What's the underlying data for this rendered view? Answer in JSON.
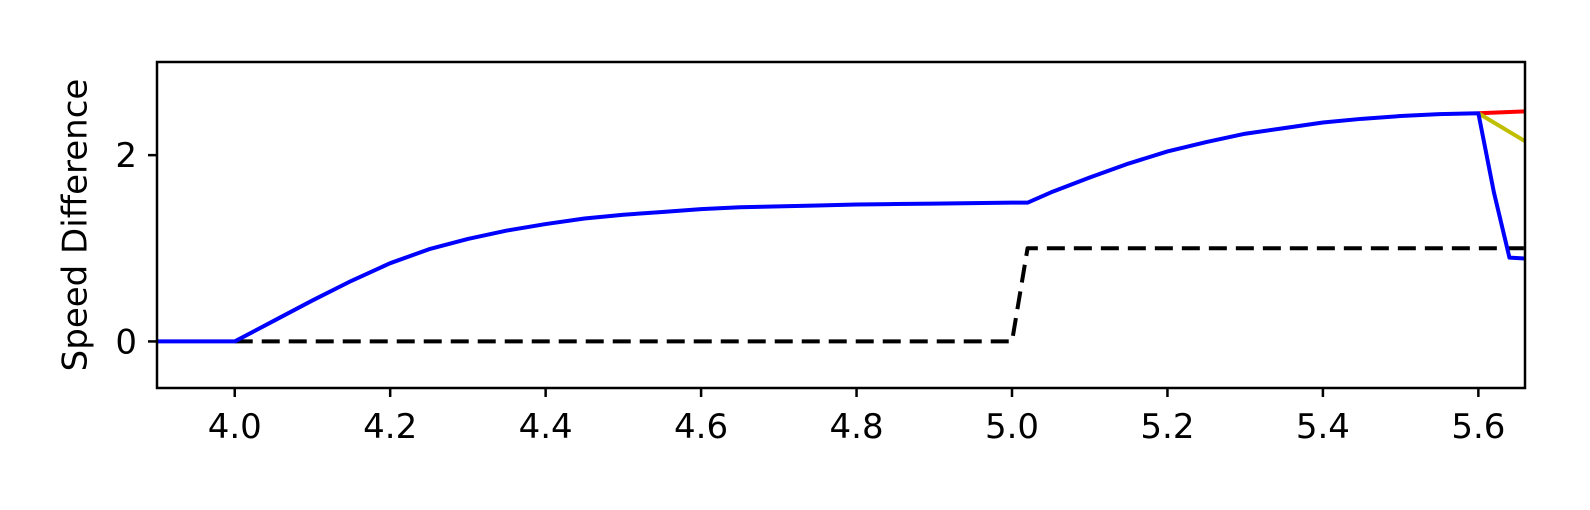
{
  "chart_data": {
    "type": "line",
    "title": "",
    "xlabel": "",
    "ylabel": "Speed Difference",
    "xlim": [
      3.9,
      5.66
    ],
    "ylim": [
      -0.5,
      3.0
    ],
    "grid": false,
    "legend": "none",
    "x_ticks": [
      {
        "value": 4.0,
        "label": "4.0"
      },
      {
        "value": 4.2,
        "label": "4.2"
      },
      {
        "value": 4.4,
        "label": "4.4"
      },
      {
        "value": 4.6,
        "label": "4.6"
      },
      {
        "value": 4.8,
        "label": "4.8"
      },
      {
        "value": 5.0,
        "label": "5.0"
      },
      {
        "value": 5.2,
        "label": "5.2"
      },
      {
        "value": 5.4,
        "label": "5.4"
      },
      {
        "value": 5.6,
        "label": "5.6"
      }
    ],
    "y_ticks": [
      {
        "value": 0,
        "label": "0"
      },
      {
        "value": 2,
        "label": "2"
      }
    ],
    "series": [
      {
        "key": "reference",
        "color": "#000000",
        "dashed": true,
        "x": [
          4.0,
          5.0,
          5.02,
          5.66
        ],
        "y": [
          0.0,
          0.0,
          1.0,
          1.0
        ]
      },
      {
        "key": "red",
        "color": "#ff0000",
        "dashed": false,
        "x": [
          5.6,
          5.66
        ],
        "y": [
          2.45,
          2.47
        ]
      },
      {
        "key": "olive",
        "color": "#bfbf00",
        "dashed": false,
        "x": [
          5.6,
          5.66
        ],
        "y": [
          2.45,
          2.15
        ]
      },
      {
        "key": "blue",
        "color": "#0000ff",
        "dashed": false,
        "x": [
          3.9,
          4.0,
          4.05,
          4.1,
          4.15,
          4.2,
          4.25,
          4.3,
          4.35,
          4.4,
          4.45,
          4.5,
          4.55,
          4.6,
          4.65,
          4.7,
          4.75,
          4.8,
          4.85,
          4.9,
          4.95,
          5.0,
          5.02,
          5.05,
          5.1,
          5.15,
          5.2,
          5.25,
          5.3,
          5.35,
          5.4,
          5.45,
          5.5,
          5.55,
          5.6,
          5.62,
          5.64,
          5.66
        ],
        "y": [
          0.0,
          0.0,
          0.22,
          0.44,
          0.65,
          0.84,
          0.99,
          1.1,
          1.19,
          1.26,
          1.32,
          1.36,
          1.39,
          1.42,
          1.44,
          1.45,
          1.46,
          1.47,
          1.475,
          1.48,
          1.485,
          1.49,
          1.49,
          1.6,
          1.76,
          1.91,
          2.04,
          2.14,
          2.23,
          2.29,
          2.35,
          2.39,
          2.42,
          2.44,
          2.45,
          1.6,
          0.9,
          0.89
        ]
      }
    ]
  }
}
